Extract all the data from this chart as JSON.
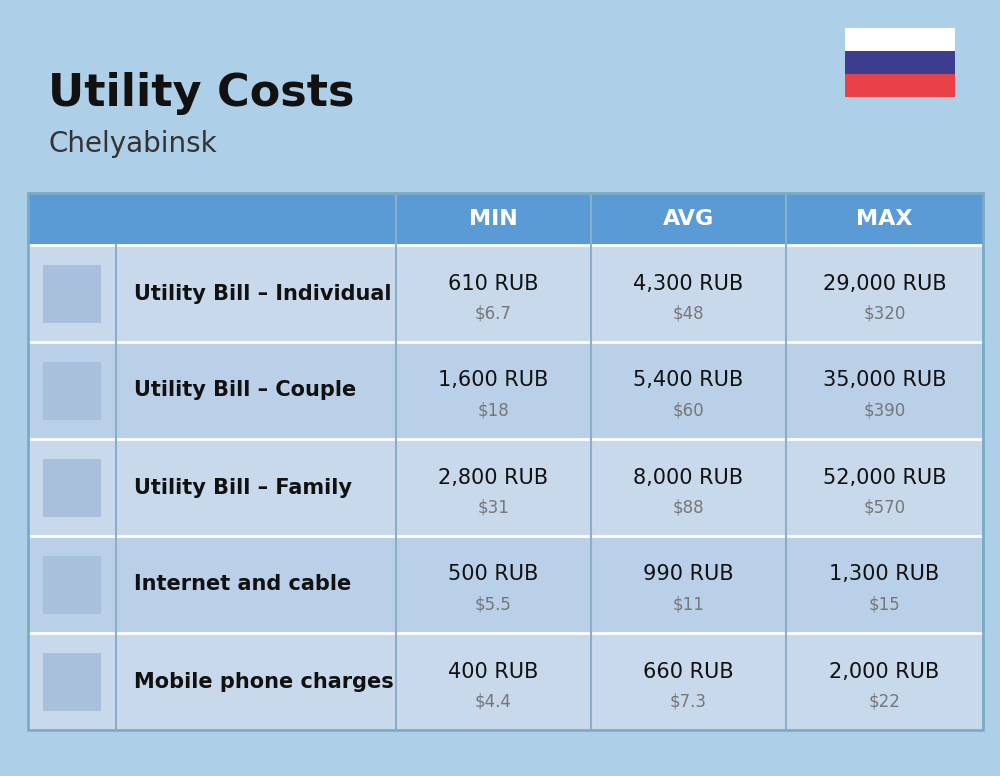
{
  "title": "Utility Costs",
  "subtitle": "Chelyabinsk",
  "background_color": "#AECFE8",
  "header_bg_color": "#5B9BD5",
  "header_text_color": "#FFFFFF",
  "row_bg_color_1": "#C8D9EC",
  "row_bg_color_2": "#BAD0E8",
  "col_divider_color": "#9AB8D4",
  "row_divider_color": "#FFFFFF",
  "flag_colors": [
    "#FFFFFF",
    "#3D3D8F",
    "#E8414A"
  ],
  "rows": [
    {
      "label": "Utility Bill – Individual",
      "min_rub": "610 RUB",
      "min_usd": "$6.7",
      "avg_rub": "4,300 RUB",
      "avg_usd": "$48",
      "max_rub": "29,000 RUB",
      "max_usd": "$320"
    },
    {
      "label": "Utility Bill – Couple",
      "min_rub": "1,600 RUB",
      "min_usd": "$18",
      "avg_rub": "5,400 RUB",
      "avg_usd": "$60",
      "max_rub": "35,000 RUB",
      "max_usd": "$390"
    },
    {
      "label": "Utility Bill – Family",
      "min_rub": "2,800 RUB",
      "min_usd": "$31",
      "avg_rub": "8,000 RUB",
      "avg_usd": "$88",
      "max_rub": "52,000 RUB",
      "max_usd": "$570"
    },
    {
      "label": "Internet and cable",
      "min_rub": "500 RUB",
      "min_usd": "$5.5",
      "avg_rub": "990 RUB",
      "avg_usd": "$11",
      "max_rub": "1,300 RUB",
      "max_usd": "$15"
    },
    {
      "label": "Mobile phone charges",
      "min_rub": "400 RUB",
      "min_usd": "$4.4",
      "avg_rub": "660 RUB",
      "avg_usd": "$7.3",
      "max_rub": "2,000 RUB",
      "max_usd": "$22"
    }
  ],
  "title_fontsize": 32,
  "subtitle_fontsize": 20,
  "header_fontsize": 16,
  "label_fontsize": 15,
  "value_fontsize": 15,
  "usd_fontsize": 12
}
